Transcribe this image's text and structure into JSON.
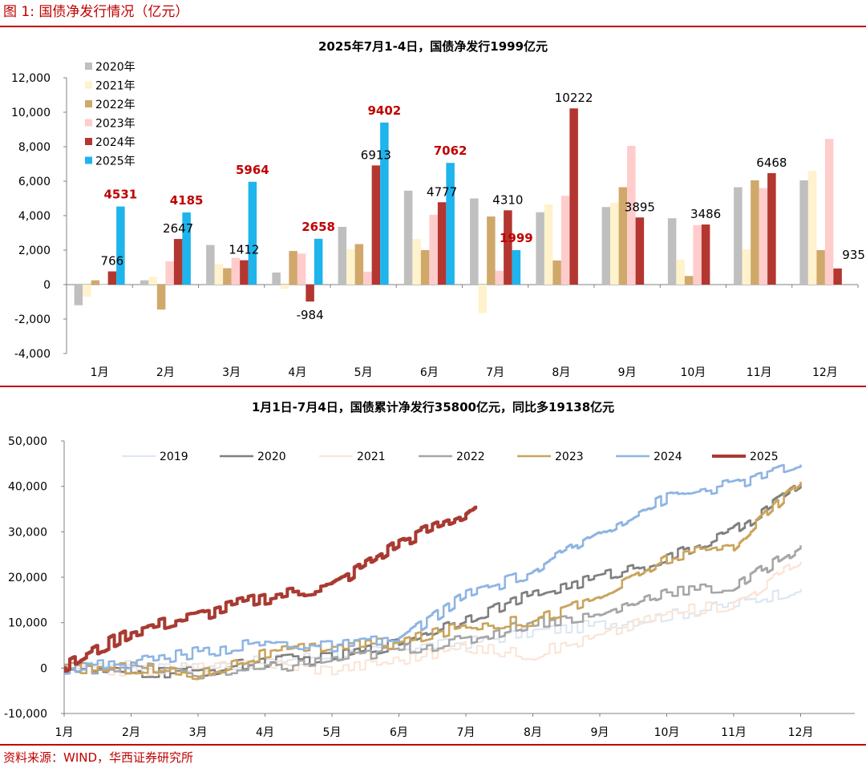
{
  "figure_title": "图 1:  国债净发行情况（亿元）",
  "source": "资料来源：WIND，华西证券研究所",
  "chart_data": [
    {
      "type": "bar",
      "title": "2025年7月1-4日，国债净发行1999亿元",
      "categories": [
        "1月",
        "2月",
        "3月",
        "4月",
        "5月",
        "6月",
        "7月",
        "8月",
        "9月",
        "10月",
        "11月",
        "12月"
      ],
      "ylim": [
        -4000,
        12000
      ],
      "yticks": [
        -4000,
        -2000,
        0,
        2000,
        4000,
        6000,
        8000,
        10000,
        12000
      ],
      "ytick_labels": [
        "-4,000",
        "-2,000",
        "0",
        "2,000",
        "4,000",
        "6,000",
        "8,000",
        "10,000",
        "12,000"
      ],
      "legend_position": "top-left",
      "series": [
        {
          "name": "2020年",
          "color": "#bfbfbf",
          "values": [
            -1200,
            250,
            2300,
            700,
            3350,
            5450,
            5000,
            4200,
            4500,
            3850,
            5650,
            6050
          ]
        },
        {
          "name": "2021年",
          "color": "#fff2cc",
          "values": [
            -700,
            450,
            1200,
            -250,
            2050,
            2650,
            -1650,
            4650,
            4750,
            1450,
            2050,
            6600
          ]
        },
        {
          "name": "2022年",
          "color": "#d0a86a",
          "values": [
            250,
            -1450,
            950,
            1950,
            2350,
            2000,
            3950,
            1400,
            5650,
            500,
            6050,
            2000
          ]
        },
        {
          "name": "2023年",
          "color": "#ffcccc",
          "values": [
            0,
            1350,
            1550,
            1800,
            750,
            4050,
            800,
            5150,
            8050,
            3450,
            5600,
            8450
          ]
        },
        {
          "name": "2024年",
          "color": "#b33630",
          "values": [
            766,
            2647,
            1412,
            -984,
            6913,
            4777,
            4310,
            10222,
            3895,
            3486,
            6468,
            935
          ]
        },
        {
          "name": "2025年",
          "color": "#1eb4ec",
          "values": [
            4531,
            4185,
            5964,
            2658,
            9402,
            7062,
            1999,
            null,
            null,
            null,
            null,
            null
          ]
        }
      ],
      "labels_2024": [
        "766",
        "2647",
        "1412",
        "-984",
        "6913",
        "4777",
        "4310",
        "10222",
        "3895",
        "3486",
        "6468",
        "935"
      ],
      "labels_2025": [
        "4531",
        "4185",
        "5964",
        "2658",
        "9402",
        "7062",
        "1999"
      ]
    },
    {
      "type": "line",
      "title": "1月1日-7月4日，国债累计净发行35800亿元，同比多19138亿元",
      "xlabel_ticks": [
        "1月",
        "2月",
        "3月",
        "4月",
        "5月",
        "6月",
        "7月",
        "8月",
        "9月",
        "10月",
        "11月",
        "12月"
      ],
      "ylim": [
        -10000,
        50000
      ],
      "yticks": [
        -10000,
        0,
        10000,
        20000,
        30000,
        40000,
        50000
      ],
      "ytick_labels": [
        "-10,000",
        "0",
        "10,000",
        "20,000",
        "30,000",
        "40,000",
        "50,000"
      ],
      "legend_position": "top",
      "series": [
        {
          "name": "2019",
          "color": "#dce6f2",
          "width": 2,
          "anchors": [
            [
              0,
              0
            ],
            [
              1,
              500
            ],
            [
              2,
              0
            ],
            [
              3,
              1500
            ],
            [
              4,
              3000
            ],
            [
              5,
              4500
            ],
            [
              6,
              5500
            ],
            [
              7,
              8000
            ],
            [
              8,
              9500
            ],
            [
              9,
              11500
            ],
            [
              10,
              14000
            ],
            [
              11,
              17500
            ]
          ]
        },
        {
          "name": "2020",
          "color": "#7f7f7f",
          "width": 2.5,
          "anchors": [
            [
              0,
              0
            ],
            [
              1,
              -1200
            ],
            [
              2,
              -900
            ],
            [
              3,
              1500
            ],
            [
              4,
              2200
            ],
            [
              5,
              5500
            ],
            [
              6,
              11000
            ],
            [
              7,
              16000
            ],
            [
              8,
              20000
            ],
            [
              9,
              24000
            ],
            [
              10,
              30000
            ],
            [
              11,
              40500
            ]
          ]
        },
        {
          "name": "2021",
          "color": "#fbe4d5",
          "width": 2,
          "anchors": [
            [
              0,
              0
            ],
            [
              1,
              -500
            ],
            [
              2,
              0
            ],
            [
              3,
              1000
            ],
            [
              4,
              -300
            ],
            [
              5,
              1800
            ],
            [
              6,
              4500
            ],
            [
              7,
              3000
            ],
            [
              8,
              7000
            ],
            [
              9,
              12000
            ],
            [
              10,
              14000
            ],
            [
              11,
              23500
            ]
          ]
        },
        {
          "name": "2022",
          "color": "#a6a6a6",
          "width": 2.5,
          "anchors": [
            [
              0,
              0
            ],
            [
              1,
              200
            ],
            [
              2,
              -1300
            ],
            [
              3,
              -300
            ],
            [
              4,
              1700
            ],
            [
              5,
              4000
            ],
            [
              6,
              6000
            ],
            [
              7,
              10000
            ],
            [
              8,
              11500
            ],
            [
              9,
              17000
            ],
            [
              10,
              17500
            ],
            [
              11,
              27000
            ]
          ]
        },
        {
          "name": "2023",
          "color": "#c9a45c",
          "width": 2.5,
          "anchors": [
            [
              0,
              0
            ],
            [
              1,
              0
            ],
            [
              2,
              -1500
            ],
            [
              3,
              3000
            ],
            [
              4,
              4900
            ],
            [
              5,
              5500
            ],
            [
              6,
              9300
            ],
            [
              7,
              10500
            ],
            [
              8,
              15500
            ],
            [
              9,
              24000
            ],
            [
              10,
              27000
            ],
            [
              11,
              41000
            ]
          ]
        },
        {
          "name": "2024",
          "color": "#8eb4e3",
          "width": 2.5,
          "anchors": [
            [
              0,
              0
            ],
            [
              1,
              1200
            ],
            [
              2,
              3500
            ],
            [
              3,
              5500
            ],
            [
              4,
              4700
            ],
            [
              5,
              6300
            ],
            [
              6,
              16000
            ],
            [
              7,
              21000
            ],
            [
              8,
              30000
            ],
            [
              9,
              37500
            ],
            [
              10,
              40500
            ],
            [
              11,
              44800
            ]
          ]
        },
        {
          "name": "2025",
          "color": "#a83a32",
          "width": 4,
          "end_x": 6.15,
          "anchors": [
            [
              0,
              0
            ],
            [
              1,
              8000
            ],
            [
              2,
              11500
            ],
            [
              3,
              15500
            ],
            [
              4,
              18000
            ],
            [
              5,
              27500
            ],
            [
              6,
              34000
            ],
            [
              6.15,
              35800
            ]
          ]
        }
      ]
    }
  ]
}
